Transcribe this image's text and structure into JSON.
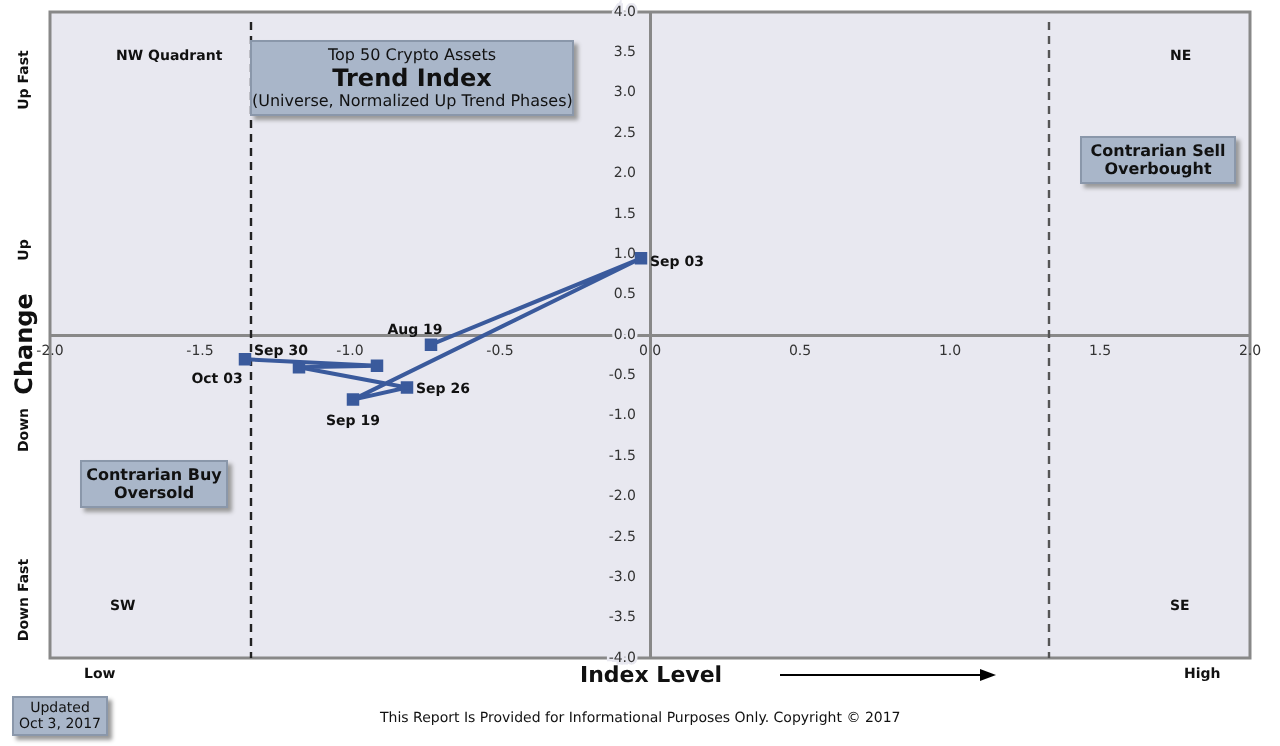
{
  "chart_data": {
    "type": "line",
    "title": "Trend Index",
    "subtitle": "(Universe, Normalized Up Trend Phases)",
    "xlabel": "Index Level",
    "ylabel": "Change",
    "annotations": [
      "Top 50 Crypto Assets",
      "NW Quadrant",
      "NE",
      "SW",
      "SE",
      "Contrarian Sell Overbought",
      "Contrarian Buy Oversold",
      "Up Fast",
      "Up",
      "Down",
      "Down Fast",
      "Low",
      "High",
      "Updated Oct 3, 2017",
      "This Report Is Provided for Informational Purposes Only. Copyright © 2017"
    ],
    "x": [
      -0.73,
      -0.03,
      -0.99,
      -0.81,
      -1.17,
      -0.91,
      -1.35
    ],
    "series": [
      {
        "color": "#3a5a9c",
        "values": [
          -0.12,
          0.95,
          -0.8,
          -0.65,
          -0.4,
          -0.38,
          -0.3
        ],
        "value_labels": [
          "Aug 19",
          "Sep 03",
          "Sep 19",
          "Sep 26",
          "Sep 30",
          null,
          "Oct 03"
        ]
      }
    ],
    "xlim": [
      -2,
      2
    ],
    "ylim": [
      -4,
      4
    ],
    "xticks": [
      {
        "value": -2,
        "label": "-2.0"
      },
      {
        "value": -1.5,
        "label": "-1.5"
      },
      {
        "value": -1,
        "label": "-1.0"
      },
      {
        "value": -0.5,
        "label": "-0.5"
      },
      {
        "value": 0,
        "label": "0.0"
      },
      {
        "value": 0.5,
        "label": "0.5"
      },
      {
        "value": 1,
        "label": "1.0"
      },
      {
        "value": 1.5,
        "label": "1.5"
      },
      {
        "value": 2,
        "label": "2.0"
      }
    ],
    "yticks": [
      {
        "value": -4,
        "label": "-4.0"
      },
      {
        "value": -3.5,
        "label": "-3.5"
      },
      {
        "value": -3,
        "label": "-3.0"
      },
      {
        "value": -2.5,
        "label": "-2.5"
      },
      {
        "value": -2,
        "label": "-2.0"
      },
      {
        "value": -1.5,
        "label": "-1.5"
      },
      {
        "value": -1,
        "label": "-1.0"
      },
      {
        "value": -0.5,
        "label": "-0.5"
      },
      {
        "value": 0,
        "label": "0.0"
      },
      {
        "value": 0.5,
        "label": "0.5"
      },
      {
        "value": 1,
        "label": "1.0"
      },
      {
        "value": 1.5,
        "label": "1.5"
      },
      {
        "value": 2,
        "label": "2.0"
      },
      {
        "value": 2.5,
        "label": "2.5"
      },
      {
        "value": 3,
        "label": "3.0"
      },
      {
        "value": 3.5,
        "label": "3.5"
      },
      {
        "value": 4,
        "label": "4.0"
      }
    ],
    "ref_lines": [
      {
        "axis": "x",
        "value": -1.33,
        "color": "#222222",
        "line_style": "dashed"
      },
      {
        "axis": "x",
        "value": 1.33,
        "color": "#555555",
        "line_style": "dashed"
      }
    ],
    "grid": false,
    "legend": false,
    "marker": "square",
    "line_style": "solid"
  }
}
